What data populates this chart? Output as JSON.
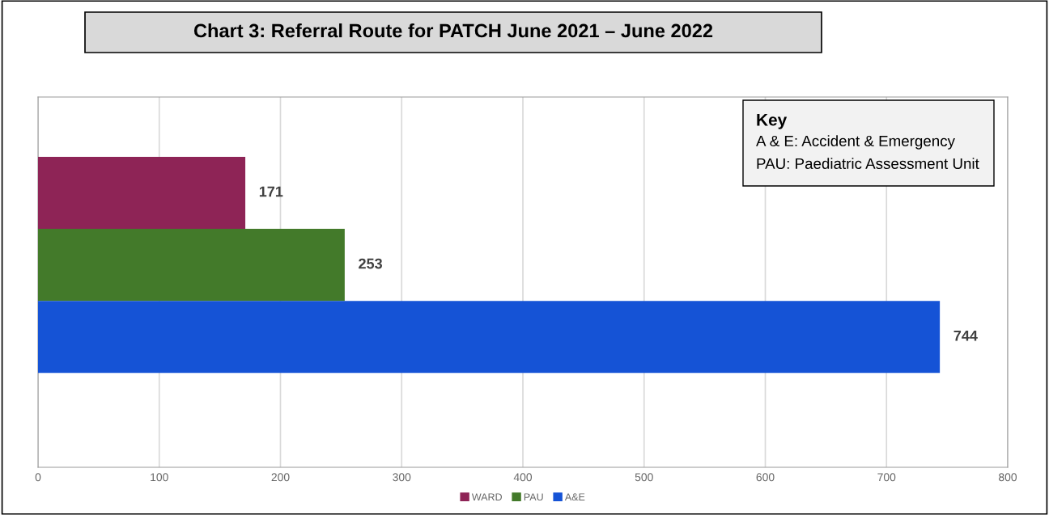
{
  "chart_data": {
    "type": "bar",
    "orientation": "horizontal",
    "title": "Chart 3: Referral Route for PATCH June 2021 – June 2022",
    "categories": [
      null
    ],
    "series": [
      {
        "name": "WARD",
        "color": "#8e2456",
        "values": [
          171
        ]
      },
      {
        "name": "PAU",
        "color": "#437a2a",
        "values": [
          253
        ]
      },
      {
        "name": "A&E",
        "color": "#1553d6",
        "values": [
          744
        ]
      }
    ],
    "xlim": [
      0,
      800
    ],
    "xticks": [
      0,
      100,
      200,
      300,
      400,
      500,
      600,
      700,
      800
    ],
    "grid": "x",
    "legend": "bottom",
    "data_labels": true,
    "annotations": [
      "Key",
      "A & E: Accident & Emergency",
      "PAU: Paediatric Assessment Unit"
    ]
  }
}
